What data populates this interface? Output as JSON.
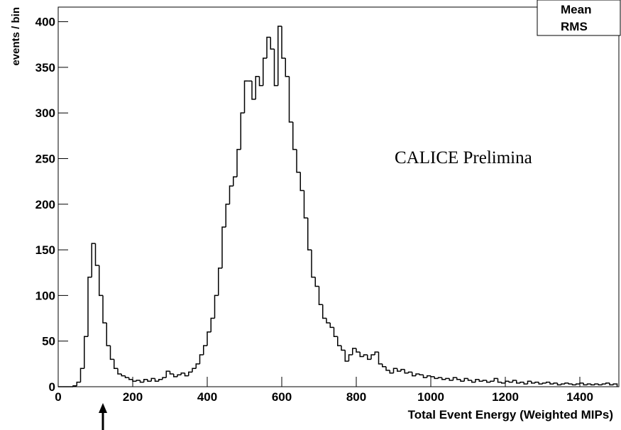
{
  "chart_data": {
    "type": "histogram",
    "x_label": "Total Event Energy (Weighted MIPs)",
    "y_label": "events / bin",
    "annotation": "CALICE Prelimina",
    "stats_labels": [
      "Mean",
      "RMS"
    ],
    "color": "#000000",
    "annotation_color": "#ff0000",
    "xlim": [
      0,
      1500
    ],
    "ylim": [
      0,
      416
    ],
    "xticks": [
      0,
      200,
      400,
      600,
      800,
      1000,
      1200,
      1400
    ],
    "yticks": [
      0,
      50,
      100,
      150,
      200,
      250,
      300,
      350,
      400
    ],
    "bins": [
      0,
      10,
      20,
      30,
      40,
      50,
      60,
      70,
      80,
      90,
      100,
      110,
      120,
      130,
      140,
      150,
      160,
      170,
      180,
      190,
      200,
      210,
      220,
      230,
      240,
      250,
      260,
      270,
      280,
      290,
      300,
      310,
      320,
      330,
      340,
      350,
      360,
      370,
      380,
      390,
      400,
      410,
      420,
      430,
      440,
      450,
      460,
      470,
      480,
      490,
      500,
      510,
      520,
      530,
      540,
      550,
      560,
      570,
      580,
      590,
      600,
      610,
      620,
      630,
      640,
      650,
      660,
      670,
      680,
      690,
      700,
      710,
      720,
      730,
      740,
      750,
      760,
      770,
      780,
      790,
      800,
      810,
      820,
      830,
      840,
      850,
      860,
      870,
      880,
      890,
      900,
      910,
      920,
      930,
      940,
      950,
      960,
      970,
      980,
      990,
      1000,
      1010,
      1020,
      1030,
      1040,
      1050,
      1060,
      1070,
      1080,
      1090,
      1100,
      1110,
      1120,
      1130,
      1140,
      1150,
      1160,
      1170,
      1180,
      1190,
      1200,
      1210,
      1220,
      1230,
      1240,
      1250,
      1260,
      1270,
      1280,
      1290,
      1300,
      1310,
      1320,
      1330,
      1340,
      1350,
      1360,
      1370,
      1380,
      1390,
      1400,
      1410,
      1420,
      1430,
      1440,
      1450,
      1460,
      1470,
      1480,
      1490,
      1500
    ],
    "values": [
      0,
      0,
      0,
      0,
      1,
      5,
      20,
      55,
      120,
      157,
      133,
      100,
      70,
      45,
      30,
      20,
      14,
      12,
      10,
      8,
      6,
      7,
      5,
      8,
      6,
      9,
      6,
      8,
      10,
      17,
      14,
      11,
      13,
      15,
      12,
      16,
      20,
      25,
      35,
      45,
      60,
      75,
      100,
      130,
      175,
      200,
      220,
      230,
      260,
      300,
      335,
      335,
      315,
      340,
      330,
      360,
      383,
      370,
      330,
      395,
      360,
      340,
      290,
      260,
      235,
      215,
      185,
      150,
      120,
      110,
      90,
      75,
      70,
      65,
      55,
      45,
      40,
      28,
      35,
      42,
      38,
      33,
      35,
      30,
      35,
      38,
      25,
      22,
      18,
      15,
      20,
      17,
      19,
      15,
      16,
      12,
      14,
      13,
      10,
      12,
      11,
      9,
      10,
      8,
      9,
      7,
      10,
      8,
      6,
      9,
      7,
      5,
      8,
      6,
      7,
      5,
      6,
      9,
      5,
      4,
      6,
      5,
      7,
      4,
      5,
      3,
      6,
      4,
      5,
      3,
      4,
      5,
      3,
      4,
      2,
      3,
      4,
      3,
      2,
      3,
      4,
      2,
      3,
      2,
      3,
      2,
      3,
      4,
      2,
      3
    ]
  }
}
